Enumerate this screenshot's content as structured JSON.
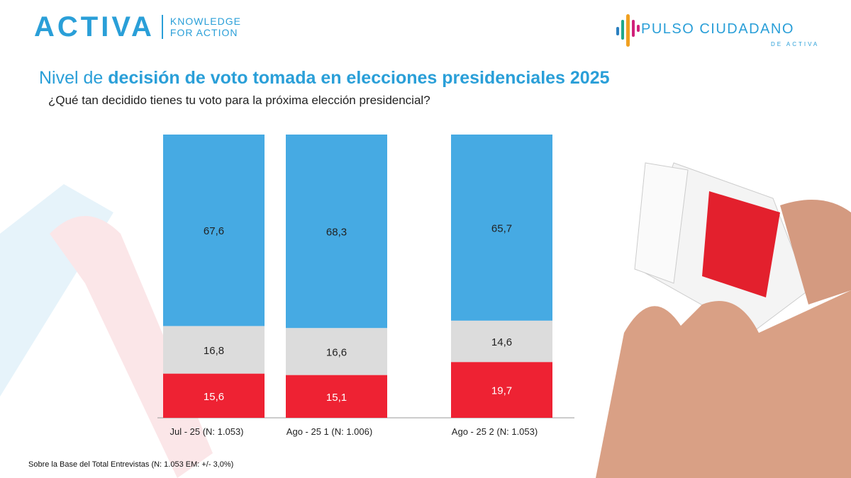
{
  "header": {
    "logo_left": {
      "word": "ACTIVA",
      "tagline_1": "KNOWLEDGE",
      "tagline_2": "FOR ACTION"
    },
    "logo_right": {
      "name": "PULSO CIUDADANO",
      "sub": "DE ACTIVA"
    }
  },
  "title": {
    "prefix": "Nivel de ",
    "bold": "decisión de voto tomada en elecciones presidenciales 2025"
  },
  "subtitle": "¿Qué tan decidido tienes tu voto para la próxima elección presidencial?",
  "footer": "Sobre la Base del Total Entrevistas (N: 1.053 EM: +/- 3,0%)",
  "chart_data": {
    "type": "bar",
    "stacked": true,
    "categories": [
      "Jul - 25 (N: 1.053)",
      "Ago - 25 1 (N: 1.006)",
      "Ago - 25 2 (N: 1.053)"
    ],
    "series": [
      {
        "values": [
          15.6,
          15.1,
          19.7
        ],
        "color": "#ee2233"
      },
      {
        "values": [
          16.8,
          16.6,
          14.6
        ],
        "color": "#dcdcdc"
      },
      {
        "values": [
          67.6,
          68.3,
          65.7
        ],
        "color": "#46aae3"
      }
    ],
    "ylim": [
      0,
      100
    ],
    "grid": false,
    "legend": "none"
  },
  "colors": {
    "brand_blue": "#2a9fd8",
    "red": "#ee2233"
  }
}
